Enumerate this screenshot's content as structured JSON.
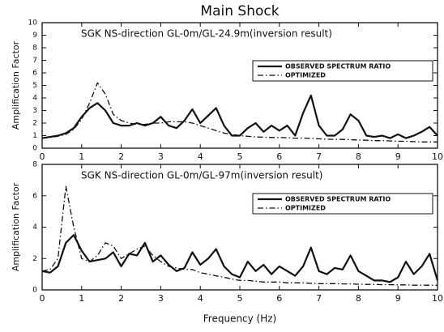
{
  "title": "Main Shock",
  "xlabel": "Frequency (Hz)",
  "chart_data": [
    {
      "type": "line",
      "subtitle": "SGK NS-direction GL-0m/GL-24.9m(inversion result)",
      "ylabel": "Amplification Factor",
      "x": [
        0,
        0.2,
        0.4,
        0.6,
        0.8,
        1,
        1.2,
        1.4,
        1.6,
        1.8,
        2,
        2.2,
        2.4,
        2.6,
        2.8,
        3,
        3.2,
        3.4,
        3.6,
        3.8,
        4,
        4.2,
        4.4,
        4.6,
        4.8,
        5,
        5.2,
        5.4,
        5.6,
        5.8,
        6,
        6.2,
        6.4,
        6.6,
        6.8,
        7,
        7.2,
        7.4,
        7.6,
        7.8,
        8,
        8.2,
        8.4,
        8.6,
        8.8,
        9,
        9.2,
        9.4,
        9.6,
        9.8,
        10
      ],
      "series": [
        {
          "name": "OBSERVED SPECTRUM RATIO",
          "color": "#111111",
          "linestyle": "solid",
          "values": [
            0.8,
            0.9,
            1.0,
            1.2,
            1.6,
            2.5,
            3.2,
            3.6,
            3.0,
            2.0,
            1.8,
            1.8,
            2.0,
            1.8,
            2.0,
            2.5,
            1.8,
            1.6,
            2.2,
            3.1,
            2.0,
            2.6,
            3.2,
            1.8,
            1.0,
            1.0,
            1.6,
            2.0,
            1.3,
            1.8,
            1.4,
            1.8,
            1.0,
            2.8,
            4.2,
            1.8,
            1.0,
            1.0,
            1.5,
            2.7,
            2.2,
            1.0,
            0.9,
            1.0,
            0.8,
            1.1,
            0.8,
            1.0,
            1.3,
            1.7,
            1.0
          ]
        },
        {
          "name": "OPTIMIZED",
          "color": "#111111",
          "linestyle": "dashdot",
          "values": [
            0.8,
            0.85,
            0.95,
            1.1,
            1.5,
            2.3,
            3.6,
            5.2,
            4.3,
            2.7,
            2.2,
            2.0,
            1.9,
            1.9,
            2.0,
            2.0,
            2.1,
            2.1,
            2.1,
            2.0,
            1.8,
            1.6,
            1.4,
            1.2,
            1.1,
            1.0,
            0.95,
            0.9,
            0.88,
            0.85,
            0.85,
            0.83,
            0.8,
            0.8,
            0.78,
            0.75,
            0.72,
            0.7,
            0.7,
            0.68,
            0.65,
            0.63,
            0.6,
            0.6,
            0.58,
            0.55,
            0.55,
            0.52,
            0.5,
            0.5,
            0.5
          ]
        }
      ],
      "xlim": [
        0,
        10
      ],
      "xticks": [
        0,
        1,
        2,
        3,
        4,
        5,
        6,
        7,
        8,
        9,
        10
      ],
      "ylim": [
        0,
        10
      ],
      "yticks": [
        0,
        1,
        2,
        3,
        4,
        5,
        6,
        7,
        8,
        9,
        10
      ],
      "legend": "upper right"
    },
    {
      "type": "line",
      "subtitle": "SGK NS-direction GL-0m/GL-97m(inversion result)",
      "ylabel": "Amplification Factor",
      "x": [
        0,
        0.2,
        0.4,
        0.6,
        0.8,
        1,
        1.2,
        1.4,
        1.6,
        1.8,
        2,
        2.2,
        2.4,
        2.6,
        2.8,
        3,
        3.2,
        3.4,
        3.6,
        3.8,
        4,
        4.2,
        4.4,
        4.6,
        4.8,
        5,
        5.2,
        5.4,
        5.6,
        5.8,
        6,
        6.2,
        6.4,
        6.6,
        6.8,
        7,
        7.2,
        7.4,
        7.6,
        7.8,
        8,
        8.2,
        8.4,
        8.6,
        8.8,
        9,
        9.2,
        9.4,
        9.6,
        9.8,
        10
      ],
      "series": [
        {
          "name": "OBSERVED SPECTRUM RATIO",
          "color": "#111111",
          "linestyle": "solid",
          "values": [
            1.2,
            1.1,
            1.5,
            3.0,
            3.5,
            2.5,
            1.8,
            1.9,
            2.0,
            2.4,
            1.5,
            2.3,
            2.2,
            3.0,
            1.8,
            2.2,
            1.6,
            1.2,
            1.4,
            2.4,
            1.6,
            2.0,
            2.6,
            1.5,
            1.0,
            0.8,
            1.8,
            1.2,
            1.6,
            1.0,
            1.5,
            1.2,
            0.9,
            1.5,
            2.7,
            1.2,
            1.0,
            1.4,
            1.3,
            2.2,
            1.2,
            0.9,
            0.6,
            0.6,
            0.5,
            0.8,
            1.8,
            1.0,
            1.5,
            2.3,
            0.6
          ]
        },
        {
          "name": "OPTIMIZED",
          "color": "#111111",
          "linestyle": "dashdot",
          "values": [
            1.2,
            1.3,
            2.0,
            6.6,
            4.0,
            2.0,
            1.8,
            2.2,
            3.0,
            2.8,
            2.0,
            2.3,
            2.6,
            2.8,
            2.2,
            1.8,
            1.5,
            1.4,
            1.3,
            1.3,
            1.1,
            1.0,
            0.9,
            0.8,
            0.7,
            0.6,
            0.6,
            0.55,
            0.5,
            0.5,
            0.5,
            0.45,
            0.45,
            0.45,
            0.42,
            0.4,
            0.4,
            0.4,
            0.38,
            0.38,
            0.36,
            0.35,
            0.35,
            0.33,
            0.33,
            0.32,
            0.32,
            0.3,
            0.3,
            0.3,
            0.3
          ]
        }
      ],
      "xlim": [
        0,
        10
      ],
      "xticks": [
        0,
        1,
        2,
        3,
        4,
        5,
        6,
        7,
        8,
        9,
        10
      ],
      "ylim": [
        0,
        8
      ],
      "yticks": [
        0,
        2,
        4,
        6,
        8
      ],
      "legend": "upper right"
    }
  ]
}
